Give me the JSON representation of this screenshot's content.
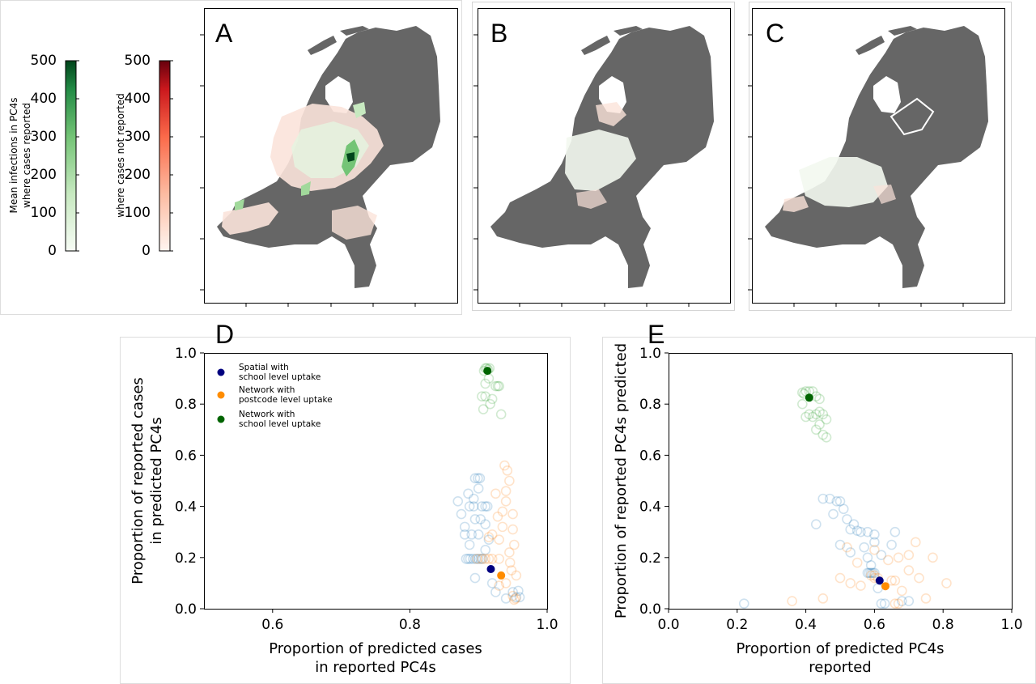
{
  "colorbars": [
    {
      "label_lines": [
        "Mean infections in PC4s",
        "where cases reported"
      ],
      "ticks": [
        "0",
        "100",
        "200",
        "300",
        "400",
        "500"
      ],
      "cmap": "Greens",
      "low": "#f7fcf5",
      "high": "#00441b"
    },
    {
      "label_lines": [
        "",
        "where cases not reported"
      ],
      "ticks": [
        "0",
        "100",
        "200",
        "300",
        "400",
        "500"
      ],
      "cmap": "Reds",
      "low": "#fff5f0",
      "high": "#67000d"
    }
  ],
  "maps": [
    {
      "letter": "A",
      "land_color": "#666666"
    },
    {
      "letter": "B",
      "land_color": "#666666"
    },
    {
      "letter": "C",
      "land_color": "#666666"
    }
  ],
  "legend": {
    "entries": [
      {
        "lines": [
          "Spatial with",
          "school level uptake"
        ],
        "color": "#00007f"
      },
      {
        "lines": [
          "Network with",
          "postcode level uptake"
        ],
        "color": "#ff8c00"
      },
      {
        "lines": [
          "Network with",
          "school level uptake"
        ],
        "color": "#006400"
      }
    ]
  },
  "chart_data": [
    {
      "panel": "D",
      "type": "scatter",
      "xlabel_lines": [
        "Proportion of predicted cases",
        "in reported PC4s"
      ],
      "ylabel_lines": [
        "Proportion of reported cases",
        "in predicted PC4s"
      ],
      "xlim": [
        0.5,
        1.0
      ],
      "ylim": [
        0.0,
        1.0
      ],
      "xticks": [
        "0.6",
        "0.8",
        "1.0"
      ],
      "xtick_values": [
        0.6,
        0.8,
        1.0
      ],
      "yticks": [
        "0.0",
        "0.2",
        "0.4",
        "0.6",
        "0.8",
        "1.0"
      ],
      "ytick_values": [
        0.0,
        0.2,
        0.4,
        0.6,
        0.8,
        1.0
      ],
      "series": [
        {
          "color": "#1f77b4",
          "mean": [
            0.918,
            0.155
          ],
          "mean_color": "#00007f",
          "points": [
            [
              0.885,
              0.195
            ],
            [
              0.888,
              0.195
            ],
            [
              0.892,
              0.195
            ],
            [
              0.896,
              0.195
            ],
            [
              0.9,
              0.195
            ],
            [
              0.903,
              0.195
            ],
            [
              0.906,
              0.195
            ],
            [
              0.882,
              0.195
            ],
            [
              0.899,
              0.51
            ],
            [
              0.902,
              0.51
            ],
            [
              0.895,
              0.51
            ],
            [
              0.91,
              0.4
            ],
            [
              0.905,
              0.4
            ],
            [
              0.913,
              0.4
            ],
            [
              0.893,
              0.4
            ],
            [
              0.887,
              0.4
            ],
            [
              0.89,
              0.29
            ],
            [
              0.9,
              0.29
            ],
            [
              0.88,
              0.29
            ],
            [
              0.895,
              0.35
            ],
            [
              0.903,
              0.35
            ],
            [
              0.885,
              0.45
            ],
            [
              0.893,
              0.43
            ],
            [
              0.91,
              0.33
            ],
            [
              0.915,
              0.27
            ],
            [
              0.91,
              0.23
            ],
            [
              0.9,
              0.47
            ],
            [
              0.875,
              0.37
            ],
            [
              0.88,
              0.32
            ],
            [
              0.887,
              0.25
            ],
            [
              0.96,
              0.045
            ],
            [
              0.955,
              0.045
            ],
            [
              0.95,
              0.065
            ],
            [
              0.94,
              0.04
            ],
            [
              0.958,
              0.07
            ],
            [
              0.925,
              0.065
            ],
            [
              0.87,
              0.42
            ],
            [
              0.92,
              0.1
            ],
            [
              0.895,
              0.12
            ]
          ]
        },
        {
          "color": "#ff7f0e",
          "mean": [
            0.933,
            0.13
          ],
          "mean_color": "#ff8c00",
          "points": [
            [
              0.952,
              0.035
            ],
            [
              0.954,
              0.04
            ],
            [
              0.95,
              0.05
            ],
            [
              0.905,
              0.195
            ],
            [
              0.91,
              0.195
            ],
            [
              0.915,
              0.195
            ],
            [
              0.92,
              0.195
            ],
            [
              0.898,
              0.195
            ],
            [
              0.93,
              0.195
            ],
            [
              0.935,
              0.32
            ],
            [
              0.94,
              0.42
            ],
            [
              0.945,
              0.5
            ],
            [
              0.942,
              0.54
            ],
            [
              0.935,
              0.38
            ],
            [
              0.93,
              0.27
            ],
            [
              0.925,
              0.45
            ],
            [
              0.95,
              0.31
            ],
            [
              0.952,
              0.25
            ],
            [
              0.945,
              0.22
            ],
            [
              0.94,
              0.46
            ],
            [
              0.93,
              0.09
            ],
            [
              0.94,
              0.1
            ],
            [
              0.948,
              0.15
            ],
            [
              0.955,
              0.13
            ],
            [
              0.938,
              0.56
            ],
            [
              0.928,
              0.36
            ],
            [
              0.92,
              0.29
            ],
            [
              0.946,
              0.18
            ],
            [
              0.95,
              0.37
            ],
            [
              0.915,
              0.28
            ]
          ]
        },
        {
          "color": "#2ca02c",
          "mean": [
            0.913,
            0.93
          ],
          "mean_color": "#006400",
          "points": [
            [
              0.91,
              0.94
            ],
            [
              0.912,
              0.94
            ],
            [
              0.914,
              0.935
            ],
            [
              0.908,
              0.93
            ],
            [
              0.916,
              0.94
            ],
            [
              0.928,
              0.87
            ],
            [
              0.93,
              0.87
            ],
            [
              0.925,
              0.87
            ],
            [
              0.91,
              0.83
            ],
            [
              0.905,
              0.83
            ],
            [
              0.907,
              0.78
            ],
            [
              0.917,
              0.8
            ],
            [
              0.933,
              0.76
            ],
            [
              0.92,
              0.82
            ],
            [
              0.91,
              0.88
            ],
            [
              0.915,
              0.9
            ]
          ]
        }
      ]
    },
    {
      "panel": "E",
      "type": "scatter",
      "xlabel_lines": [
        "Proportion of predicted PC4s",
        "reported"
      ],
      "ylabel_lines": [
        "Proportion of reported PC4s predicted"
      ],
      "xlim": [
        0.0,
        1.0
      ],
      "ylim": [
        0.0,
        1.0
      ],
      "xticks": [
        "0.0",
        "0.2",
        "0.4",
        "0.6",
        "0.8",
        "1.0"
      ],
      "xtick_values": [
        0.0,
        0.2,
        0.4,
        0.6,
        0.8,
        1.0
      ],
      "yticks": [
        "0.0",
        "0.2",
        "0.4",
        "0.6",
        "0.8",
        "1.0"
      ],
      "ytick_values": [
        0.0,
        0.2,
        0.4,
        0.6,
        0.8,
        1.0
      ],
      "series": [
        {
          "color": "#1f77b4",
          "mean": [
            0.615,
            0.11
          ],
          "mean_color": "#00007f",
          "points": [
            [
              0.58,
              0.14
            ],
            [
              0.585,
              0.14
            ],
            [
              0.59,
              0.14
            ],
            [
              0.595,
              0.14
            ],
            [
              0.6,
              0.14
            ],
            [
              0.58,
              0.2
            ],
            [
              0.59,
              0.17
            ],
            [
              0.53,
              0.31
            ],
            [
              0.55,
              0.305
            ],
            [
              0.56,
              0.3
            ],
            [
              0.58,
              0.3
            ],
            [
              0.6,
              0.29
            ],
            [
              0.49,
              0.42
            ],
            [
              0.5,
              0.42
            ],
            [
              0.47,
              0.43
            ],
            [
              0.45,
              0.43
            ],
            [
              0.52,
              0.35
            ],
            [
              0.54,
              0.33
            ],
            [
              0.51,
              0.39
            ],
            [
              0.48,
              0.37
            ],
            [
              0.62,
              0.02
            ],
            [
              0.63,
              0.02
            ],
            [
              0.68,
              0.03
            ],
            [
              0.7,
              0.03
            ],
            [
              0.22,
              0.02
            ],
            [
              0.65,
              0.25
            ],
            [
              0.62,
              0.21
            ],
            [
              0.57,
              0.24
            ],
            [
              0.53,
              0.22
            ],
            [
              0.5,
              0.25
            ],
            [
              0.6,
              0.26
            ],
            [
              0.66,
              0.3
            ],
            [
              0.43,
              0.33
            ],
            [
              0.61,
              0.08
            ]
          ]
        },
        {
          "color": "#ff7f0e",
          "mean": [
            0.632,
            0.088
          ],
          "mean_color": "#ff8c00",
          "points": [
            [
              0.59,
              0.13
            ],
            [
              0.6,
              0.13
            ],
            [
              0.6,
              0.12
            ],
            [
              0.61,
              0.12
            ],
            [
              0.65,
              0.11
            ],
            [
              0.66,
              0.11
            ],
            [
              0.66,
              0.02
            ],
            [
              0.67,
              0.02
            ],
            [
              0.36,
              0.03
            ],
            [
              0.5,
              0.12
            ],
            [
              0.53,
              0.1
            ],
            [
              0.56,
              0.09
            ],
            [
              0.7,
              0.15
            ],
            [
              0.73,
              0.12
            ],
            [
              0.75,
              0.04
            ],
            [
              0.81,
              0.1
            ],
            [
              0.64,
              0.19
            ],
            [
              0.67,
              0.2
            ],
            [
              0.7,
              0.21
            ],
            [
              0.55,
              0.18
            ],
            [
              0.52,
              0.24
            ],
            [
              0.6,
              0.23
            ],
            [
              0.72,
              0.26
            ],
            [
              0.77,
              0.2
            ],
            [
              0.45,
              0.04
            ],
            [
              0.68,
              0.07
            ]
          ]
        },
        {
          "color": "#2ca02c",
          "mean": [
            0.41,
            0.825
          ],
          "mean_color": "#006400",
          "points": [
            [
              0.4,
              0.85
            ],
            [
              0.41,
              0.85
            ],
            [
              0.42,
              0.85
            ],
            [
              0.395,
              0.84
            ],
            [
              0.43,
              0.83
            ],
            [
              0.44,
              0.82
            ],
            [
              0.39,
              0.845
            ],
            [
              0.41,
              0.76
            ],
            [
              0.42,
              0.75
            ],
            [
              0.43,
              0.76
            ],
            [
              0.44,
              0.77
            ],
            [
              0.45,
              0.76
            ],
            [
              0.4,
              0.75
            ],
            [
              0.44,
              0.72
            ],
            [
              0.45,
              0.68
            ],
            [
              0.46,
              0.67
            ],
            [
              0.43,
              0.7
            ],
            [
              0.39,
              0.8
            ],
            [
              0.46,
              0.74
            ]
          ]
        }
      ]
    }
  ]
}
